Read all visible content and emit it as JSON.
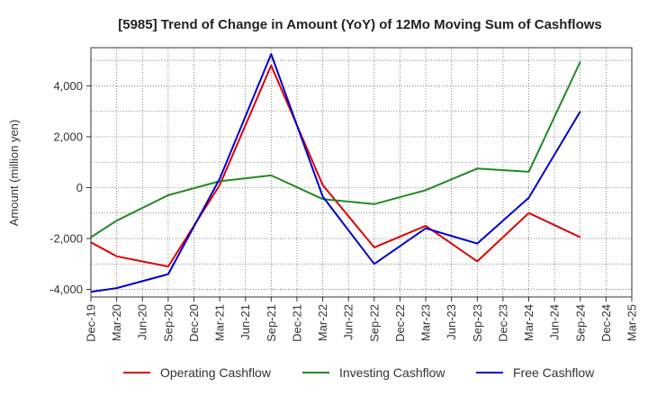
{
  "chart_data": {
    "type": "line",
    "title": "[5985]  Trend of Change in Amount (YoY) of 12Mo Moving Sum of Cashflows",
    "xlabel": "",
    "ylabel": "Amount (million yen)",
    "ylim": [
      -4300,
      5500
    ],
    "yticks": [
      -4000,
      -2000,
      0,
      2000,
      4000
    ],
    "ytick_labels": [
      "-4,000",
      "-2,000",
      "0",
      "2,000",
      "4,000"
    ],
    "categories": [
      "Dec-19",
      "Mar-20",
      "Jun-20",
      "Sep-20",
      "Dec-20",
      "Mar-21",
      "Jun-21",
      "Sep-21",
      "Dec-21",
      "Mar-22",
      "Jun-22",
      "Sep-22",
      "Dec-22",
      "Mar-23",
      "Jun-23",
      "Sep-23",
      "Dec-23",
      "Mar-24",
      "Jun-24",
      "Sep-24",
      "Dec-24",
      "Mar-25"
    ],
    "grid": true,
    "legend_position": "bottom",
    "series": [
      {
        "name": "Operating Cashflow",
        "color": "#dd0000",
        "values": [
          -2150,
          -2700,
          null,
          -3100,
          null,
          100,
          null,
          4800,
          null,
          100,
          null,
          -2350,
          null,
          -1500,
          null,
          -2900,
          null,
          -1000,
          null,
          -1950,
          null,
          null
        ]
      },
      {
        "name": "Investing Cashflow",
        "color": "#228822",
        "values": [
          -1950,
          -1300,
          null,
          -300,
          null,
          250,
          null,
          480,
          null,
          -450,
          null,
          -650,
          null,
          -100,
          null,
          750,
          null,
          620,
          null,
          4950,
          null,
          null
        ]
      },
      {
        "name": "Free Cashflow",
        "color": "#0000cc",
        "values": [
          -4100,
          -3950,
          null,
          -3400,
          null,
          350,
          null,
          5250,
          null,
          -350,
          null,
          -3000,
          null,
          -1600,
          null,
          -2200,
          null,
          -400,
          null,
          3000,
          null,
          null
        ]
      }
    ]
  }
}
